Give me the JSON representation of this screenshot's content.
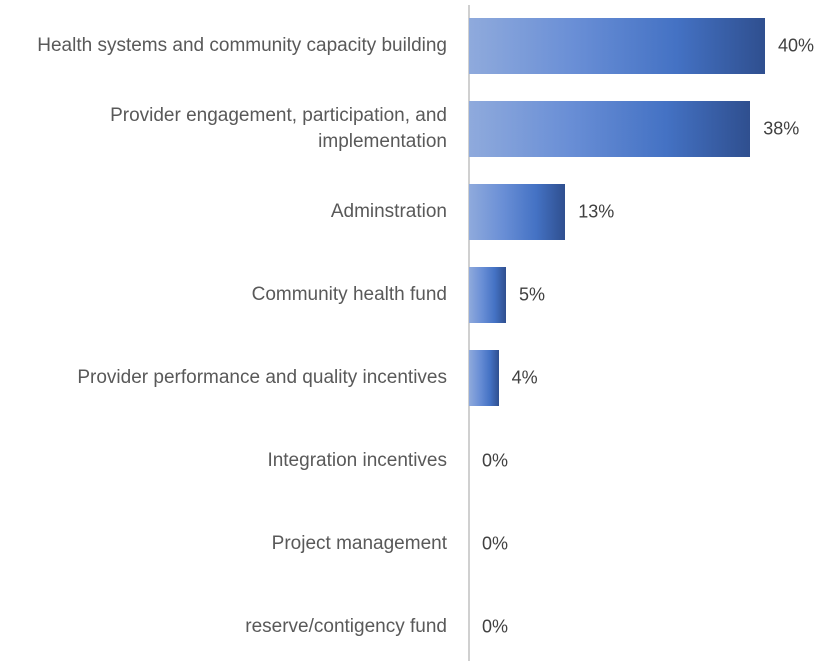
{
  "chart_data": {
    "type": "bar",
    "orientation": "horizontal",
    "categories": [
      "Health systems and community capacity building",
      "Provider engagement, participation, and implementation",
      "Adminstration",
      "Community health fund",
      "Provider performance and quality incentives",
      "Integration incentives",
      "Project management",
      "reserve/contigency fund"
    ],
    "values": [
      40,
      38,
      13,
      5,
      4,
      0,
      0,
      0
    ],
    "value_labels": [
      "40%",
      "38%",
      "13%",
      "5%",
      "4%",
      "0%",
      "0%",
      "0%"
    ],
    "color": "#4472c4"
  }
}
